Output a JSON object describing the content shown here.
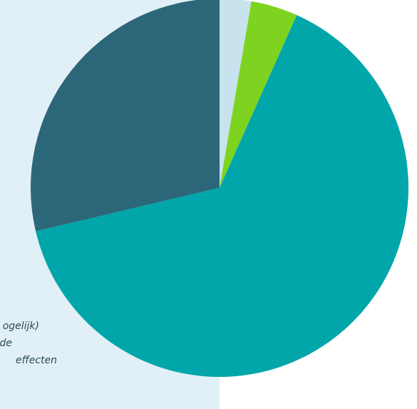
{
  "chart_data": {
    "type": "pie",
    "start_angle_deg": 0,
    "direction": "clockwise",
    "slices": [
      {
        "value": 2.7,
        "color": "#c8e3ee"
      },
      {
        "value": 4.0,
        "color": "#7ed321"
      },
      {
        "value": 64.6,
        "color": "#00a6a9"
      },
      {
        "value": 28.7,
        "color": "#2b6778"
      }
    ]
  },
  "legend": {
    "lines": [
      "ogelijk)",
      "de",
      "effecten"
    ]
  },
  "colors": {
    "panel_background": "#e1eff6",
    "text": "#2b4a57"
  }
}
